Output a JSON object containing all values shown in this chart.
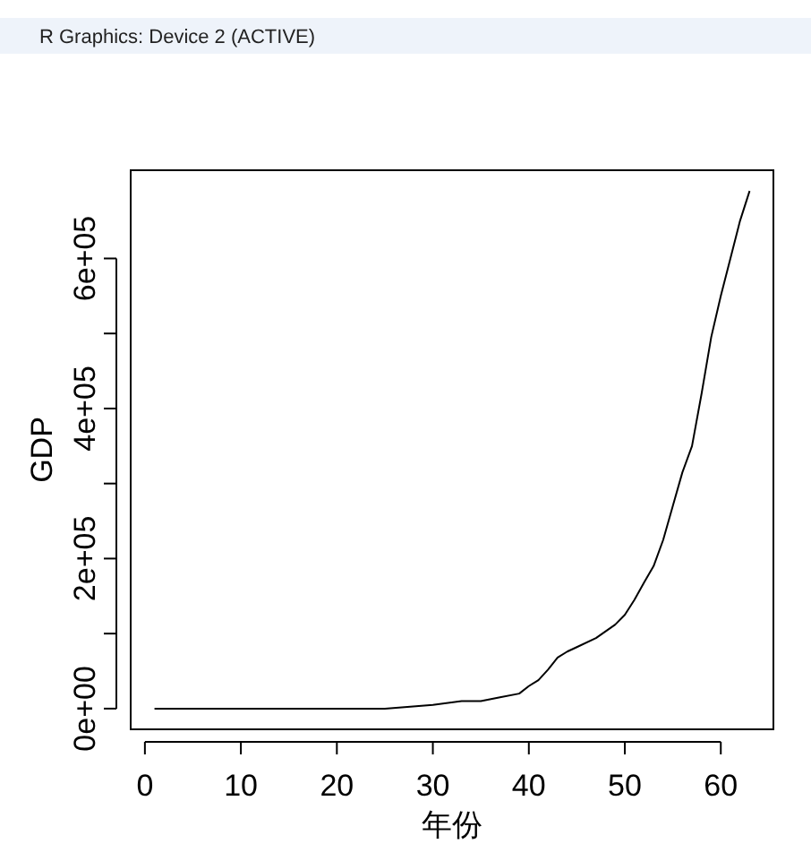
{
  "chart_data": {
    "type": "line",
    "xlabel": "年份",
    "ylabel": "GDP",
    "annotations": [
      "R Graphics: Device 2 (ACTIVE)"
    ],
    "xlim": [
      -1.48,
      65.48
    ],
    "xticks": [
      0,
      10,
      20,
      30,
      40,
      50,
      60
    ],
    "ylim": [
      -27600,
      717600
    ],
    "yticks": [
      {
        "value": 0,
        "label": "0e+00"
      },
      {
        "value": 100000,
        "label": null
      },
      {
        "value": 200000,
        "label": "2e+05"
      },
      {
        "value": 300000,
        "label": null
      },
      {
        "value": 400000,
        "label": "4e+05"
      },
      {
        "value": 500000,
        "label": null
      },
      {
        "value": 600000,
        "label": "6e+05"
      }
    ],
    "grid": false,
    "marker": "none",
    "line_style": "solid",
    "series": [
      {
        "color": "#000000",
        "x": [
          1,
          5,
          10,
          15,
          20,
          25,
          30,
          33,
          35,
          37,
          39,
          40,
          41,
          42,
          43,
          44,
          45,
          47,
          49,
          50,
          51,
          52,
          53,
          54,
          55,
          56,
          57,
          58,
          59,
          60,
          61,
          62,
          63
        ],
        "values": [
          0,
          0,
          0,
          0,
          0,
          0,
          5000,
          10000,
          10000,
          15000,
          20000,
          30000,
          38000,
          52000,
          68000,
          76000,
          82000,
          94000,
          112000,
          125000,
          145000,
          168000,
          190000,
          225000,
          270000,
          315000,
          350000,
          420000,
          495000,
          550000,
          600000,
          650000,
          690000
        ]
      }
    ]
  }
}
